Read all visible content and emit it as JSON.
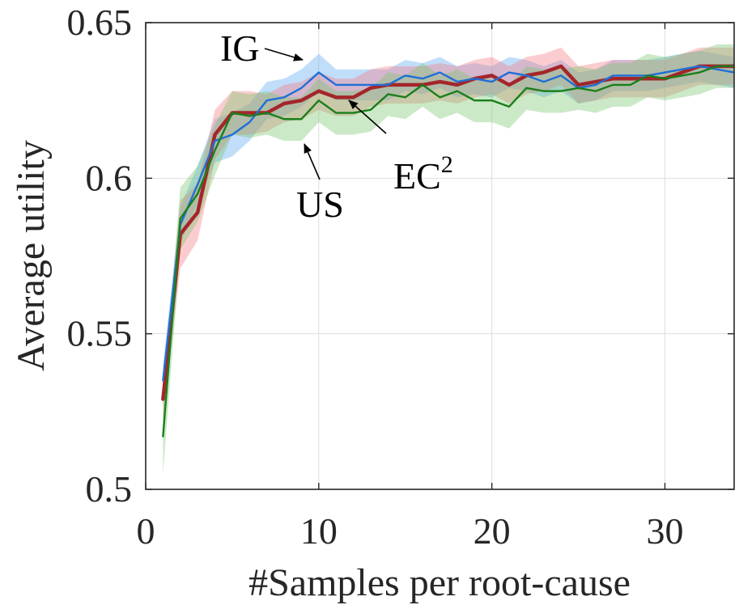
{
  "chart_data": {
    "type": "line",
    "title": "",
    "xlabel": "#Samples per root-cause",
    "ylabel": "Average utility",
    "xlim": [
      0,
      34
    ],
    "ylim": [
      0.5,
      0.65
    ],
    "xticks": [
      0,
      10,
      20,
      30
    ],
    "yticks": [
      0.5,
      0.55,
      0.6,
      0.65
    ],
    "xtick_labels": [
      "0",
      "10",
      "20",
      "30"
    ],
    "ytick_labels": [
      "0.5",
      "0.55",
      "0.6",
      "0.65"
    ],
    "grid": true,
    "x": [
      1,
      2,
      3,
      4,
      5,
      6,
      7,
      8,
      9,
      10,
      11,
      12,
      13,
      14,
      15,
      16,
      17,
      18,
      19,
      20,
      21,
      22,
      23,
      24,
      25,
      26,
      27,
      28,
      29,
      30,
      31,
      32,
      33,
      34
    ],
    "series": [
      {
        "name": "IG",
        "color": "#1f6fd6",
        "band_color": "#5aa9f2",
        "values": [
          0.535,
          0.585,
          0.598,
          0.612,
          0.614,
          0.618,
          0.625,
          0.626,
          0.629,
          0.634,
          0.63,
          0.63,
          0.63,
          0.63,
          0.633,
          0.632,
          0.634,
          0.631,
          0.632,
          0.631,
          0.634,
          0.633,
          0.631,
          0.633,
          0.629,
          0.63,
          0.633,
          0.633,
          0.633,
          0.634,
          0.635,
          0.636,
          0.635,
          0.634
        ],
        "band": [
          0.005,
          0.006,
          0.006,
          0.007,
          0.007,
          0.006,
          0.006,
          0.006,
          0.006,
          0.006,
          0.005,
          0.005,
          0.005,
          0.005,
          0.005,
          0.005,
          0.005,
          0.005,
          0.005,
          0.005,
          0.005,
          0.005,
          0.005,
          0.005,
          0.005,
          0.005,
          0.005,
          0.005,
          0.005,
          0.005,
          0.005,
          0.005,
          0.005,
          0.005
        ]
      },
      {
        "name": "EC2",
        "color": "#a3262b",
        "band_color": "#f47a82",
        "values": [
          0.529,
          0.582,
          0.589,
          0.614,
          0.621,
          0.621,
          0.621,
          0.624,
          0.625,
          0.628,
          0.626,
          0.626,
          0.629,
          0.63,
          0.63,
          0.63,
          0.631,
          0.63,
          0.632,
          0.633,
          0.63,
          0.633,
          0.634,
          0.636,
          0.63,
          0.631,
          0.632,
          0.632,
          0.632,
          0.632,
          0.634,
          0.636,
          0.636,
          0.636
        ],
        "band": [
          0.006,
          0.011,
          0.009,
          0.008,
          0.007,
          0.007,
          0.006,
          0.006,
          0.006,
          0.006,
          0.006,
          0.006,
          0.006,
          0.006,
          0.006,
          0.006,
          0.006,
          0.006,
          0.006,
          0.006,
          0.006,
          0.006,
          0.006,
          0.006,
          0.006,
          0.006,
          0.006,
          0.006,
          0.006,
          0.006,
          0.006,
          0.006,
          0.006,
          0.006
        ]
      },
      {
        "name": "US",
        "color": "#1a7f1a",
        "band_color": "#76c66b",
        "values": [
          0.517,
          0.587,
          0.595,
          0.609,
          0.621,
          0.62,
          0.621,
          0.619,
          0.619,
          0.625,
          0.621,
          0.621,
          0.622,
          0.627,
          0.626,
          0.63,
          0.626,
          0.628,
          0.625,
          0.625,
          0.623,
          0.629,
          0.628,
          0.628,
          0.629,
          0.628,
          0.63,
          0.63,
          0.633,
          0.632,
          0.633,
          0.634,
          0.636,
          0.636
        ],
        "band": [
          0.012,
          0.01,
          0.009,
          0.008,
          0.007,
          0.007,
          0.007,
          0.007,
          0.007,
          0.007,
          0.007,
          0.007,
          0.007,
          0.007,
          0.007,
          0.007,
          0.007,
          0.007,
          0.007,
          0.007,
          0.007,
          0.007,
          0.007,
          0.007,
          0.007,
          0.007,
          0.007,
          0.007,
          0.007,
          0.007,
          0.007,
          0.007,
          0.007,
          0.007
        ]
      }
    ],
    "annotations": [
      {
        "text": "IG",
        "target_x": 9.2,
        "target_y": 0.6365
      },
      {
        "text": "EC",
        "superscript": "2",
        "target_x": 11.7,
        "target_y": 0.6245
      },
      {
        "text": "US",
        "target_x": 9.2,
        "target_y": 0.6115
      }
    ]
  }
}
